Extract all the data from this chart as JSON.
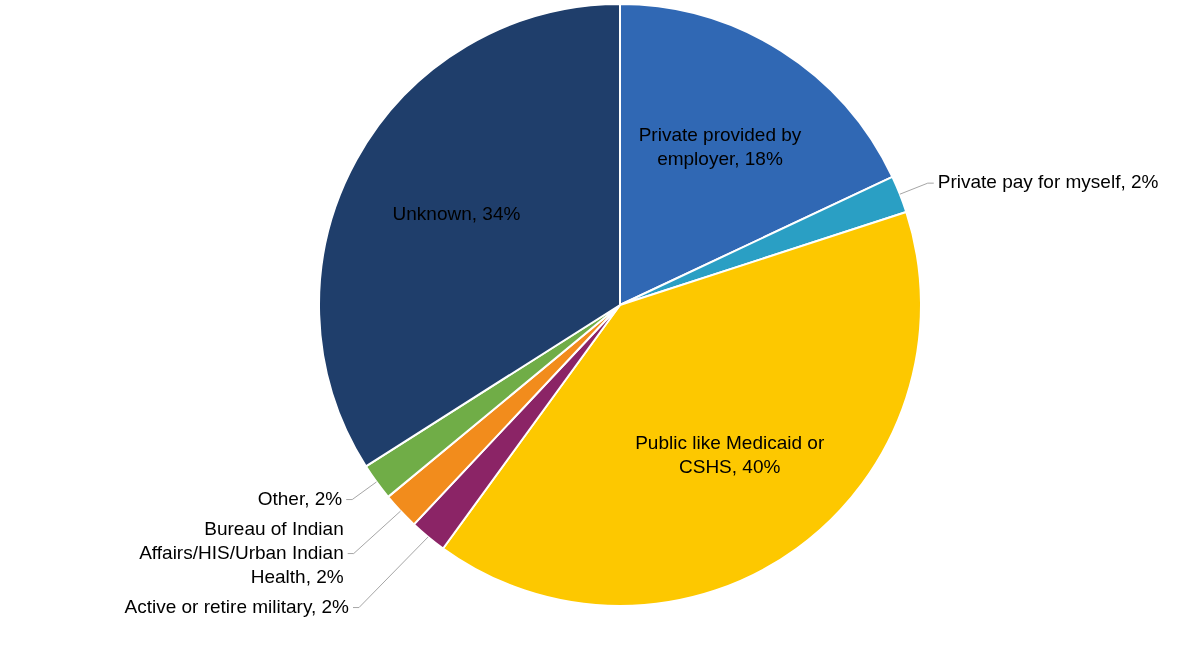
{
  "chart_data": {
    "type": "pie",
    "categories": [
      "Private provided by employer",
      "Private pay for myself",
      "Public like Medicaid or CSHS",
      "Active or retire military",
      "Bureau of Indian Affairs/HIS/Urban Indian Health",
      "Other",
      "Unknown"
    ],
    "values": [
      18,
      2,
      40,
      2,
      2,
      2,
      34
    ],
    "value_labels": [
      "18%",
      "2%",
      "40%",
      "2%",
      "2%",
      "2%",
      "34%"
    ],
    "colors": [
      "#3068b4",
      "#2a9fc4",
      "#fdc800",
      "#8b2466",
      "#f28c1c",
      "#70ad47",
      "#1f3e6b"
    ],
    "legend": false
  }
}
